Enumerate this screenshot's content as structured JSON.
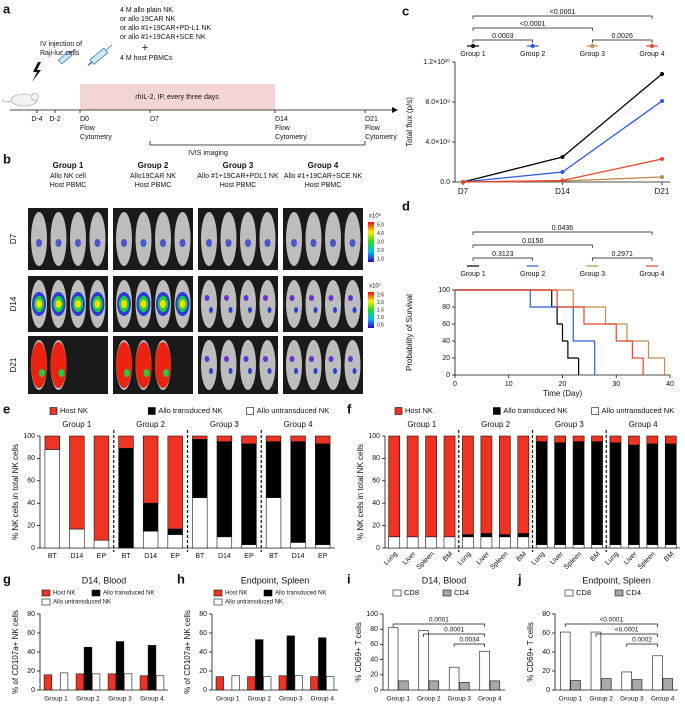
{
  "schematic": {
    "panel": "a",
    "injection": [
      "IV injection of",
      "Raji-luc cells"
    ],
    "treatment": [
      "4 M allo plain NK",
      "or allo 19CAR NK",
      "or allo #1+19CAR+PD-L1 NK",
      "or allo #1+19CAR+SCE NK"
    ],
    "plus": "+",
    "pbmc": "4 M host PBMCs",
    "cytokine": "rhIL-2, IP, every three days",
    "days": [
      "D-4",
      "D-2",
      "D0",
      "D7",
      "D14",
      "D21"
    ],
    "flow": [
      "Flow",
      "Cytometry"
    ],
    "imaging": "IVIS imaging"
  },
  "imaging": {
    "panel": "b",
    "groups": [
      {
        "name": "Group 1",
        "lines": [
          "Allo NK cell",
          "Host PBMC"
        ],
        "color": "#000000"
      },
      {
        "name": "Group 2",
        "lines": [
          "Allo19CAR NK",
          "Host PBMC"
        ],
        "color": "#2b59d9"
      },
      {
        "name": "Group 3",
        "lines": [
          "Allo #1+19CAR+PDL1 NK",
          "Host PBMC"
        ],
        "color": "#d98a2b"
      },
      {
        "name": "Group 4",
        "lines": [
          "Allo #1+19CAR+SCE NK",
          "Host PBMC"
        ],
        "color": "#e02a1a"
      }
    ],
    "rows": [
      "D7",
      "D14",
      "D21"
    ],
    "scales": [
      {
        "unit": "x10⁵",
        "ticks": [
          "5.0",
          "4.0",
          "3.0",
          "2.0",
          "1.0"
        ]
      },
      {
        "unit": "x10⁷",
        "ticks": [
          "2.5",
          "2.0",
          "1.5",
          "1.0",
          "0.5"
        ]
      }
    ]
  },
  "chart_data": [
    {
      "panel": "c",
      "type": "line",
      "ylabel": "Total flux (p/s)",
      "categories": [
        "D7",
        "D14",
        "D21"
      ],
      "ylim": [
        0,
        12000000000
      ],
      "yticks": [
        {
          "value": 0,
          "label": "0.0"
        },
        {
          "value": 4000000000,
          "label": "4.0×10⁹"
        },
        {
          "value": 8000000000,
          "label": "8.0×10⁹"
        },
        {
          "value": 12000000000,
          "label": "1.2×10¹⁰"
        }
      ],
      "series": [
        {
          "name": "Group 1",
          "color": "#000000",
          "values": [
            0,
            2500000000,
            10800000000
          ]
        },
        {
          "name": "Group 2",
          "color": "#2b59d9",
          "values": [
            0,
            1000000000,
            8100000000
          ]
        },
        {
          "name": "Group 3",
          "color": "#c08a50",
          "values": [
            0,
            100000000,
            500000000
          ]
        },
        {
          "name": "Group 4",
          "color": "#e8442a",
          "values": [
            0,
            150000000,
            2300000000
          ]
        }
      ],
      "comparisons": [
        {
          "label": "0.0003",
          "between": [
            "Group 1",
            "Group 2"
          ]
        },
        {
          "label": "<0.0001",
          "between": [
            "Group 1",
            "Group 3"
          ]
        },
        {
          "label": "<0.0001",
          "between": [
            "Group 1",
            "Group 4"
          ]
        },
        {
          "label": "0.0026",
          "between": [
            "Group 3",
            "Group 4"
          ]
        }
      ]
    },
    {
      "panel": "d",
      "type": "step",
      "xlabel": "Time (Day)",
      "ylabel": "Probability of Survival",
      "xlim": [
        0,
        40
      ],
      "xticks": [
        0,
        10,
        20,
        30,
        40
      ],
      "ylim": [
        0,
        100
      ],
      "yticks": [
        0,
        20,
        40,
        60,
        80,
        100
      ],
      "series": [
        {
          "name": "Group 1",
          "color": "#000000",
          "x": [
            0,
            18,
            19,
            20,
            21,
            23
          ],
          "values": [
            100,
            80,
            60,
            40,
            20,
            0
          ]
        },
        {
          "name": "Group 2",
          "color": "#2b59d9",
          "x": [
            0,
            14,
            22,
            26
          ],
          "values": [
            100,
            80,
            40,
            0
          ]
        },
        {
          "name": "Group 3",
          "color": "#c08a50",
          "x": [
            0,
            22,
            28,
            32,
            36,
            39
          ],
          "values": [
            100,
            80,
            60,
            40,
            20,
            0
          ]
        },
        {
          "name": "Group 4",
          "color": "#e8442a",
          "x": [
            0,
            19,
            24,
            30,
            33,
            35
          ],
          "values": [
            100,
            80,
            60,
            40,
            20,
            0
          ]
        }
      ],
      "comparisons": [
        {
          "label": "0.3123",
          "between": [
            "Group 1",
            "Group 2"
          ]
        },
        {
          "label": "0.0150",
          "between": [
            "Group 1",
            "Group 3"
          ]
        },
        {
          "label": "0.0436",
          "between": [
            "Group 1",
            "Group 4"
          ]
        },
        {
          "label": "0.2971",
          "between": [
            "Group 3",
            "Group 4"
          ]
        }
      ]
    },
    {
      "panel": "e",
      "type": "stacked_bar",
      "ylabel": "% NK cells in total NK cells",
      "groups": [
        "Group 1",
        "Group 2",
        "Group 3",
        "Group 4"
      ],
      "categories": [
        "BT",
        "D14",
        "EP",
        "BT",
        "D14",
        "EP",
        "BT",
        "D14",
        "EP",
        "BT",
        "D14",
        "EP"
      ],
      "ylim": [
        0,
        100
      ],
      "yticks": [
        0,
        20,
        40,
        60,
        80,
        100
      ],
      "series": [
        {
          "name": "Host NK",
          "color": "#ee3322",
          "values": [
            12,
            83,
            93,
            11,
            60,
            83,
            3,
            5,
            7,
            5,
            5,
            7
          ]
        },
        {
          "name": "Allo transduced NK",
          "color": "#000000",
          "values": [
            0,
            0,
            0,
            89,
            25,
            5,
            52,
            85,
            90,
            50,
            90,
            90
          ]
        },
        {
          "name": "Allo untransduced NK",
          "color": "#ffffff",
          "values": [
            88,
            17,
            7,
            0,
            15,
            12,
            45,
            10,
            3,
            45,
            5,
            3
          ]
        }
      ]
    },
    {
      "panel": "f",
      "type": "stacked_bar",
      "ylabel": "% NK cells in total NK cells",
      "groups": [
        "Group 1",
        "Group 2",
        "Group 3",
        "Group 4"
      ],
      "categories": [
        "Lung",
        "Liver",
        "Spleen",
        "BM",
        "Lung",
        "Liver",
        "Spleen",
        "BM",
        "Lung",
        "Liver",
        "Spleen",
        "BM",
        "Lung",
        "Liver",
        "Spleen",
        "BM"
      ],
      "ylim": [
        0,
        100
      ],
      "yticks": [
        0,
        20,
        40,
        60,
        80,
        100
      ],
      "series": [
        {
          "name": "Host NK",
          "color": "#ee3322",
          "values": [
            90,
            90,
            90,
            90,
            88,
            87,
            88,
            87,
            5,
            6,
            5,
            5,
            6,
            8,
            7,
            7
          ]
        },
        {
          "name": "Allo transduced NK",
          "color": "#000000",
          "values": [
            0,
            0,
            0,
            0,
            2,
            3,
            2,
            3,
            92,
            91,
            92,
            92,
            91,
            89,
            90,
            90
          ]
        },
        {
          "name": "Allo untransduced NK",
          "color": "#ffffff",
          "values": [
            10,
            10,
            10,
            10,
            10,
            10,
            10,
            10,
            3,
            3,
            3,
            3,
            3,
            3,
            3,
            3
          ]
        }
      ]
    },
    {
      "panel": "g",
      "type": "bar",
      "title": "D14, Blood",
      "ylabel": "% of CD107a+ NK cells",
      "categories": [
        "Group 1",
        "Group 2",
        "Group 3",
        "Group 4"
      ],
      "ylim": [
        0,
        80
      ],
      "yticks": [
        0,
        20,
        40,
        60,
        80
      ],
      "series": [
        {
          "name": "Host NK",
          "color": "#ee3322",
          "values": [
            16,
            17,
            17,
            15
          ]
        },
        {
          "name": "Allo transduced NK",
          "color": "#000000",
          "values": [
            null,
            45,
            51,
            47
          ]
        },
        {
          "name": "Allo untransduced NK",
          "color": "#ffffff",
          "values": [
            18,
            17,
            17,
            15
          ]
        }
      ]
    },
    {
      "panel": "h",
      "type": "bar",
      "title": "Endpoint, Spleen",
      "ylabel": "% of CD107a+ NK cells",
      "categories": [
        "Group 1",
        "Group 2",
        "Group 3",
        "Group 4"
      ],
      "ylim": [
        0,
        80
      ],
      "yticks": [
        0,
        20,
        40,
        60,
        80
      ],
      "series": [
        {
          "name": "Host NK",
          "color": "#ee3322",
          "values": [
            14,
            14,
            15,
            14
          ]
        },
        {
          "name": "Allo transduced NK",
          "color": "#000000",
          "values": [
            null,
            53,
            57,
            55
          ]
        },
        {
          "name": "Allo untransduced NK",
          "color": "#ffffff",
          "values": [
            15,
            14,
            15,
            14
          ]
        }
      ]
    },
    {
      "panel": "i",
      "type": "bar",
      "title": "D14, Blood",
      "ylabel": "% CD69+ T cells",
      "categories": [
        "Group 1",
        "Group 2",
        "Group 3",
        "Group 4"
      ],
      "ylim": [
        0,
        100
      ],
      "yticks": [
        0,
        20,
        40,
        60,
        80,
        100
      ],
      "series": [
        {
          "name": "CD8",
          "color": "#ffffff",
          "values": [
            82,
            78,
            30,
            51
          ]
        },
        {
          "name": "CD4",
          "color": "#a8a8a8",
          "values": [
            12,
            12,
            10,
            12
          ]
        }
      ],
      "comparisons": [
        {
          "label": "0.0001",
          "between": [
            "Group 1",
            "Group 4"
          ]
        },
        {
          "label": "0.0001",
          "between": [
            "Group 2",
            "Group 4"
          ]
        },
        {
          "label": "0.0034",
          "between": [
            "Group 3",
            "Group 4"
          ]
        }
      ]
    },
    {
      "panel": "j",
      "type": "bar",
      "title": "Endpoint, Spleen",
      "ylabel": "% CD69+ T cells",
      "categories": [
        "Group 1",
        "Group 2",
        "Group 3",
        "Group 4"
      ],
      "ylim": [
        0,
        80
      ],
      "yticks": [
        0,
        20,
        40,
        60,
        80
      ],
      "series": [
        {
          "name": "CD8",
          "color": "#ffffff",
          "values": [
            61,
            61,
            19,
            36
          ]
        },
        {
          "name": "CD4",
          "color": "#a8a8a8",
          "values": [
            10,
            12,
            11,
            12
          ]
        }
      ],
      "comparisons": [
        {
          "label": "<0.0001",
          "between": [
            "Group 1",
            "Group 4"
          ]
        },
        {
          "label": "<0.0001",
          "between": [
            "Group 2",
            "Group 4"
          ]
        },
        {
          "label": "0.0002",
          "between": [
            "Group 3",
            "Group 4"
          ]
        }
      ]
    }
  ]
}
